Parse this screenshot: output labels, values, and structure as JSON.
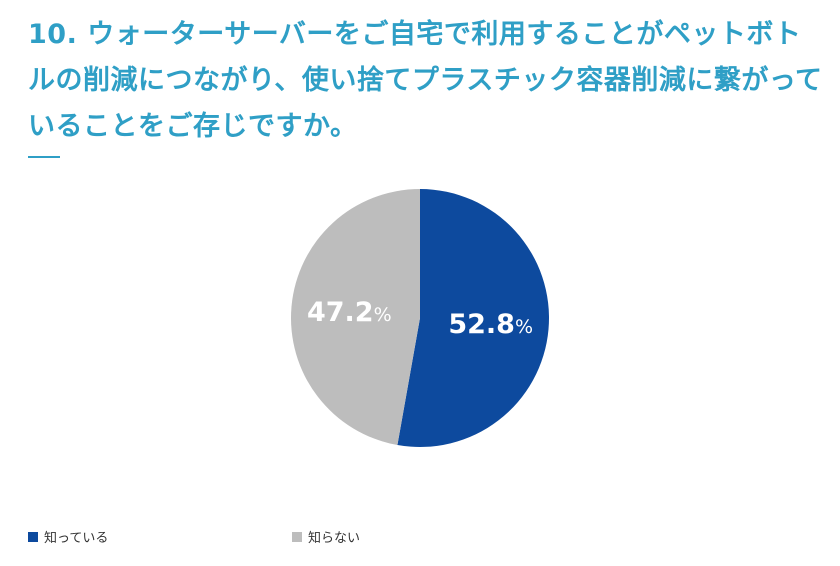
{
  "title": "10. ウォーターサーバーをご自宅で利用することがペットボトルの削減につながり、使い捨てプラスチック容器削減に繋がっていることをご存じですか。",
  "colors": {
    "title": "#2f9fc6",
    "label": "#ffffff"
  },
  "chart_data": {
    "type": "pie",
    "title": "",
    "slices": [
      {
        "label": "知っている",
        "value": 52.8,
        "color": "#0d4a9e"
      },
      {
        "label": "知らない",
        "value": 47.2,
        "color": "#bdbdbd"
      }
    ],
    "start_angle": "12 o'clock",
    "direction": "clockwise",
    "value_suffix": "%",
    "legend_position": "bottom-left"
  }
}
